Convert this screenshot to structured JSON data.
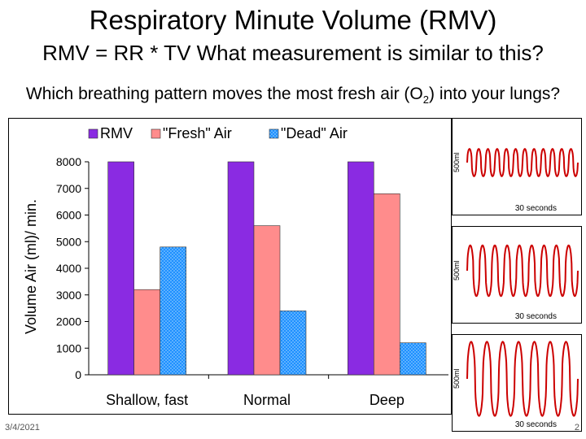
{
  "slide": {
    "title": "Respiratory Minute Volume (RMV)",
    "subtitle": "RMV = RR * TV   What measurement is similar to this?",
    "question_main": "Which breathing pattern moves the most fresh air (O",
    "question_sub": "2",
    "question_end": ") into your lungs?",
    "date": "3/4/2021",
    "page": "2"
  },
  "chart_data": {
    "type": "bar",
    "categories": [
      "Shallow, fast",
      "Normal",
      "Deep"
    ],
    "series": [
      {
        "name": "RMV",
        "values": [
          8000,
          8000,
          8000
        ],
        "color": "#8a2be2"
      },
      {
        "name": "\"Fresh\" Air",
        "values": [
          3200,
          5600,
          6800
        ],
        "color": "#ff8c8c"
      },
      {
        "name": "\"Dead\" Air",
        "values": [
          4800,
          2400,
          1200
        ],
        "color": "#1e90ff"
      }
    ],
    "ylabel": "Volume Air (ml)/ min.",
    "ylim": [
      0,
      8000
    ],
    "yticks": [
      0,
      1000,
      2000,
      3000,
      4000,
      5000,
      6000,
      7000,
      8000
    ],
    "legend": "top",
    "grid": false
  },
  "waveforms": [
    {
      "scale": "500ml",
      "time": "30 seconds",
      "cycles": 12,
      "amplitude": 0.35
    },
    {
      "scale": "500ml",
      "time": "30 seconds",
      "cycles": 9,
      "amplitude": 0.65
    },
    {
      "scale": "500ml",
      "time": "30 seconds",
      "cycles": 7,
      "amplitude": 0.95
    }
  ],
  "colors": {
    "wave": "#cc0000"
  }
}
